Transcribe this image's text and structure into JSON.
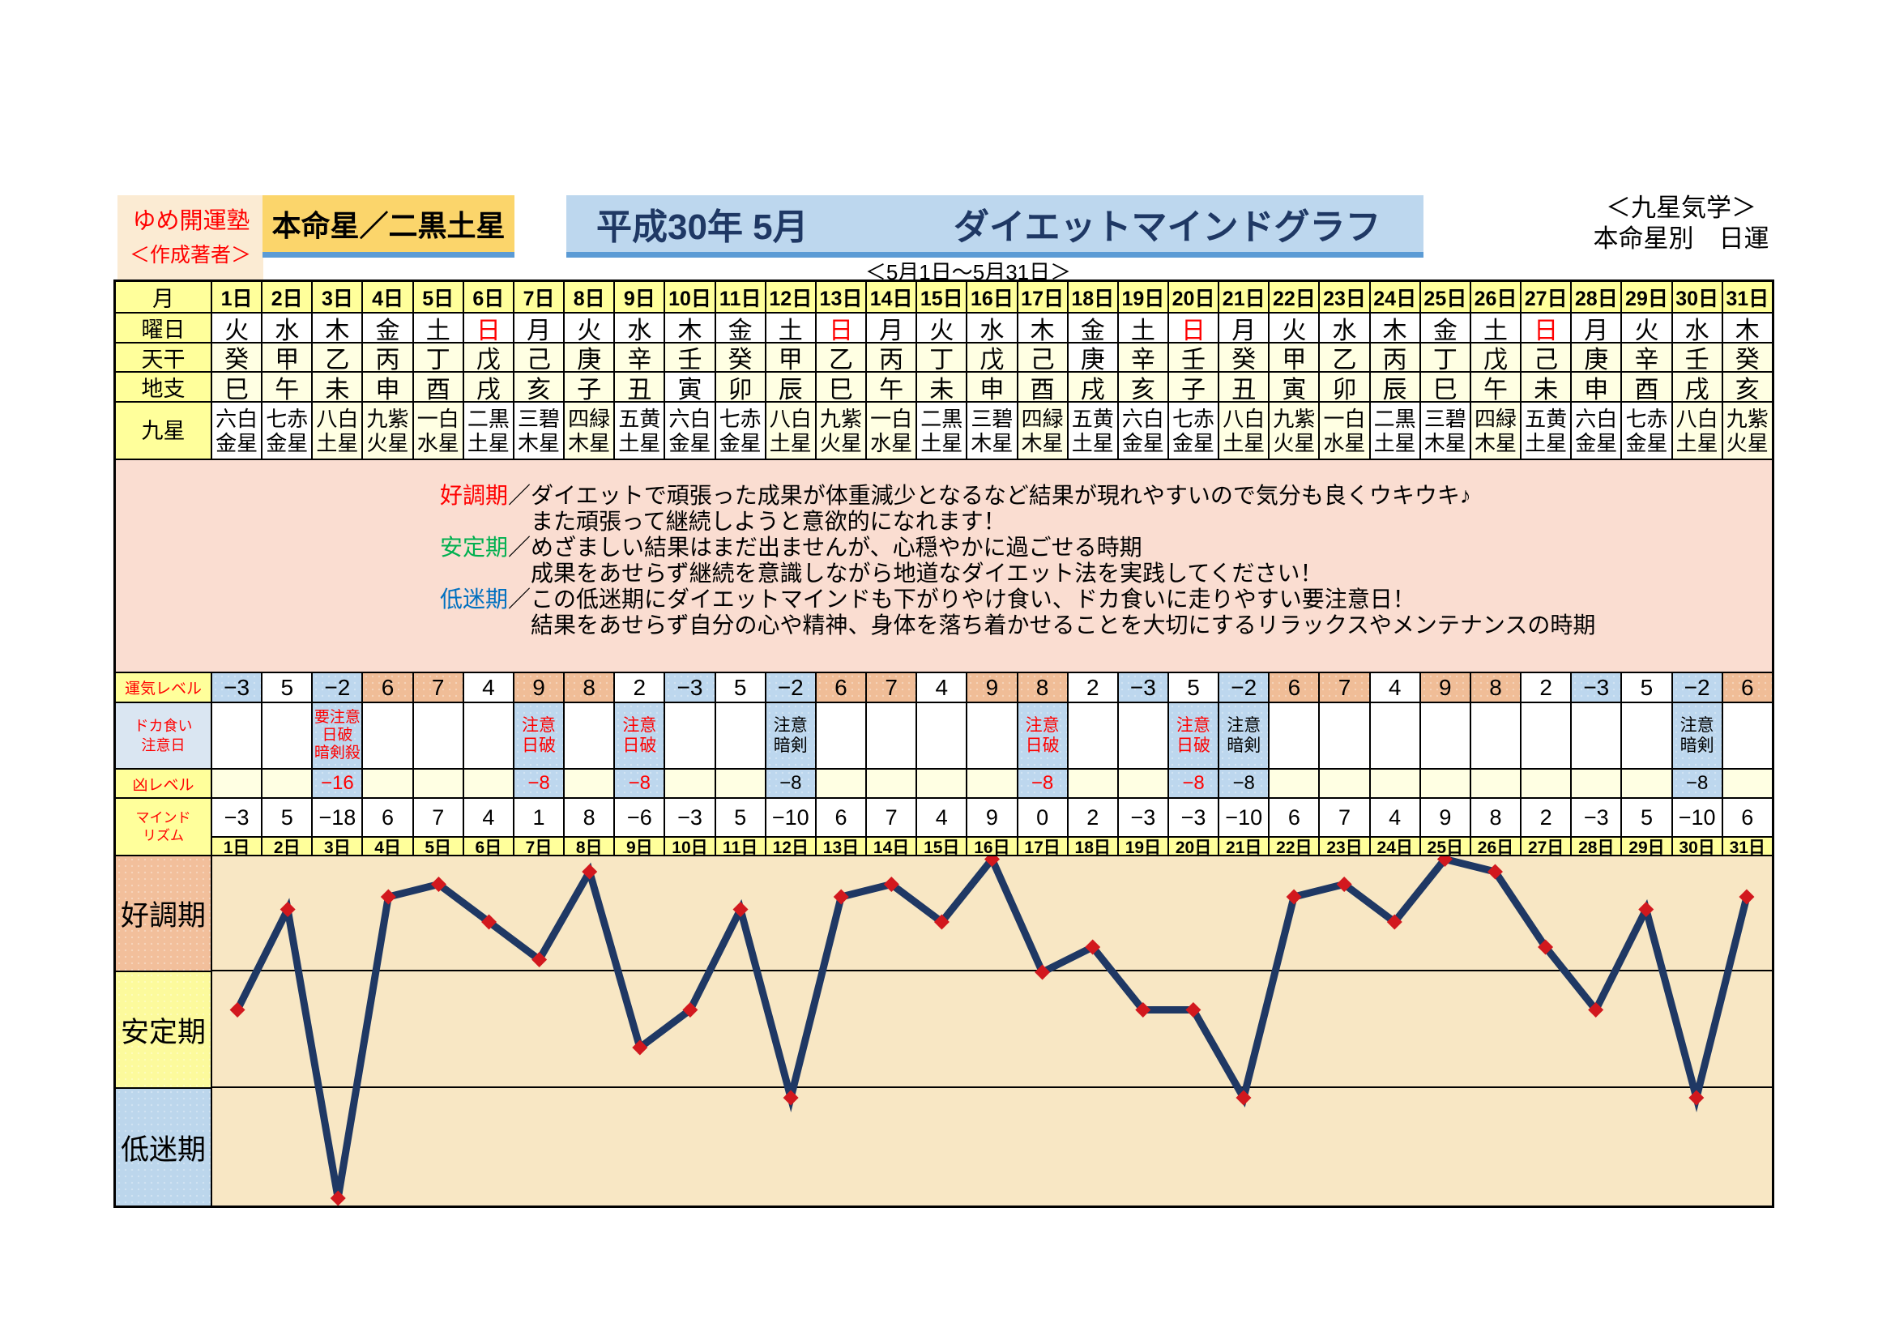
{
  "palette": {
    "brand_bg": "#FBEBD3",
    "gold_bg": "#FBD56B",
    "title_bg": "#BDD7EE",
    "bar": "#5B9BD5",
    "navy": "#1F3864",
    "red": "#FF0000",
    "green": "#00B050",
    "blue": "#0070C0",
    "yellow_cell": "#FFFF9B",
    "ivory_cell": "#FFFFE3",
    "salmon_cell": "#F0BD97",
    "blue_cell": "#BDD7EE",
    "legend_bg": "#FADDD1",
    "chart_bg": "#F8E7C4",
    "line": "#1F3864",
    "marker": "#D2181E"
  },
  "header": {
    "brand": "ゆめ開運塾",
    "author": "＜作成著者＞",
    "honmei": "本命星／二黒土星",
    "title_era": "平成30年 5月",
    "title_main": "ダイエットマインドグラフ",
    "caption_line1": "＜九星気学＞",
    "caption_line2": "本命星別　日運",
    "subtitle": "＜5月1日～5月31日＞"
  },
  "calendar": {
    "label_month": "月",
    "label_week": "曜日",
    "label_tenkan": "天干",
    "label_chishi": "地支",
    "label_kyusei": "九星",
    "days": [
      "1日",
      "2日",
      "3日",
      "4日",
      "5日",
      "6日",
      "7日",
      "8日",
      "9日",
      "10日",
      "11日",
      "12日",
      "13日",
      "14日",
      "15日",
      "16日",
      "17日",
      "18日",
      "19日",
      "20日",
      "21日",
      "22日",
      "23日",
      "24日",
      "25日",
      "26日",
      "27日",
      "28日",
      "29日",
      "30日",
      "31日"
    ],
    "weekdays": [
      "火",
      "水",
      "木",
      "金",
      "土",
      "日",
      "月",
      "火",
      "水",
      "木",
      "金",
      "土",
      "日",
      "月",
      "火",
      "水",
      "木",
      "金",
      "土",
      "日",
      "月",
      "火",
      "水",
      "木",
      "金",
      "土",
      "日",
      "月",
      "火",
      "水",
      "木"
    ],
    "sunday_color_days": [
      6,
      13,
      20,
      27
    ],
    "tenkan": [
      "癸",
      "甲",
      "乙",
      "丙",
      "丁",
      "戊",
      "己",
      "庚",
      "辛",
      "壬",
      "癸",
      "甲",
      "乙",
      "丙",
      "丁",
      "戊",
      "己",
      "庚",
      "辛",
      "壬",
      "癸",
      "甲",
      "乙",
      "丙",
      "丁",
      "戊",
      "己",
      "庚",
      "辛",
      "壬",
      "癸"
    ],
    "tenkan_white_days": [
      18
    ],
    "chishi": [
      "巳",
      "午",
      "未",
      "申",
      "酉",
      "戌",
      "亥",
      "子",
      "丑",
      "寅",
      "卯",
      "辰",
      "巳",
      "午",
      "未",
      "申",
      "酉",
      "戌",
      "亥",
      "子",
      "丑",
      "寅",
      "卯",
      "辰",
      "巳",
      "午",
      "未",
      "申",
      "酉",
      "戌",
      "亥"
    ],
    "chishi_white_days": [
      10
    ],
    "kyusei": [
      "六白金星",
      "七赤金星",
      "八白土星",
      "九紫火星",
      "一白水星",
      "二黒土星",
      "三碧木星",
      "四緑木星",
      "五黄土星",
      "六白金星",
      "七赤金星",
      "八白土星",
      "九紫火星",
      "一白水星",
      "二黒土星",
      "三碧木星",
      "四緑木星",
      "五黄土星",
      "六白金星",
      "七赤金星",
      "八白土星",
      "九紫火星",
      "一白水星",
      "二黒土星",
      "三碧木星",
      "四緑木星",
      "五黄土星",
      "六白金星",
      "七赤金星",
      "八白土星",
      "九紫火星"
    ],
    "kyusei_ivory_days": [
      3,
      4,
      5,
      8,
      12,
      13,
      14,
      17,
      21,
      22,
      23,
      26,
      30,
      31
    ]
  },
  "legend": {
    "separator": "／",
    "items": [
      {
        "term": "好調期",
        "color": "#FF0000",
        "line1": "ダイエットで頑張った成果が体重減少となるなど結果が現れやすいので気分も良くウキウキ♪",
        "line2": "また頑張って継続しようと意欲的になれます！"
      },
      {
        "term": "安定期",
        "color": "#00B050",
        "line1": "めざましい結果はまだ出ませんが、心穏やかに過ごせる時期",
        "line2": "成果をあせらず継続を意識しながら地道なダイエット法を実践してください！"
      },
      {
        "term": "低迷期",
        "color": "#0070C0",
        "line1": "この低迷期にダイエットマインドも下がりやけ食い、ドカ食いに走りやすい要注意日！",
        "line2": "結果をあせらず自分の心や精神、身体を落ち着かせることを大切にするリラックスやメンテナンスの時期"
      }
    ]
  },
  "levels": {
    "label_unki": "運気レベル",
    "label_doka": "ドカ食い\n注意日",
    "label_kyo": "凶レベル",
    "label_mind": "マインド\nリズム",
    "unki": [
      -3,
      5,
      -2,
      6,
      7,
      4,
      9,
      8,
      2,
      -3,
      5,
      -2,
      6,
      7,
      4,
      9,
      8,
      2,
      -3,
      5,
      -2,
      6,
      7,
      4,
      9,
      8,
      2,
      -3,
      5,
      -2,
      6
    ],
    "caution": [
      {
        "day": 3,
        "lines": [
          "要注意",
          "日破",
          "暗剣殺"
        ],
        "color": "red"
      },
      {
        "day": 7,
        "lines": [
          "注意",
          "日破"
        ],
        "color": "red"
      },
      {
        "day": 9,
        "lines": [
          "注意",
          "日破"
        ],
        "color": "red"
      },
      {
        "day": 12,
        "lines": [
          "注意",
          "暗剣"
        ],
        "color": "black"
      },
      {
        "day": 17,
        "lines": [
          "注意",
          "日破"
        ],
        "color": "red"
      },
      {
        "day": 20,
        "lines": [
          "注意",
          "日破"
        ],
        "color": "red"
      },
      {
        "day": 21,
        "lines": [
          "注意",
          "暗剣"
        ],
        "color": "black"
      },
      {
        "day": 30,
        "lines": [
          "注意",
          "暗剣"
        ],
        "color": "black"
      }
    ],
    "kyo": [
      {
        "day": 3,
        "value": -16,
        "color": "red"
      },
      {
        "day": 7,
        "value": -8,
        "color": "red"
      },
      {
        "day": 9,
        "value": -8,
        "color": "red"
      },
      {
        "day": 12,
        "value": -8,
        "color": "black"
      },
      {
        "day": 17,
        "value": -8,
        "color": "red"
      },
      {
        "day": 20,
        "value": -8,
        "color": "red"
      },
      {
        "day": 21,
        "value": -8,
        "color": "black"
      },
      {
        "day": 30,
        "value": -8,
        "color": "black"
      }
    ]
  },
  "chart_data": {
    "type": "line",
    "title": "マインドリズム",
    "x": [
      1,
      2,
      3,
      4,
      5,
      6,
      7,
      8,
      9,
      10,
      11,
      12,
      13,
      14,
      15,
      16,
      17,
      18,
      19,
      20,
      21,
      22,
      23,
      24,
      25,
      26,
      27,
      28,
      29,
      30,
      31
    ],
    "x_labels": [
      "1日",
      "2日",
      "3日",
      "4日",
      "5日",
      "6日",
      "7日",
      "8日",
      "9日",
      "10日",
      "11日",
      "12日",
      "13日",
      "14日",
      "15日",
      "16日",
      "17日",
      "18日",
      "19日",
      "20日",
      "21日",
      "22日",
      "23日",
      "24日",
      "25日",
      "26日",
      "27日",
      "28日",
      "29日",
      "30日",
      "31日"
    ],
    "values": [
      -3,
      5,
      -18,
      6,
      7,
      4,
      1,
      8,
      -6,
      -3,
      5,
      -10,
      6,
      7,
      4,
      9,
      0,
      2,
      -3,
      -3,
      -10,
      6,
      7,
      4,
      9,
      8,
      2,
      -3,
      5,
      -10,
      6
    ],
    "ylim": [
      -19.4,
      9.35
    ],
    "zone_boundaries": [
      0,
      -9.3
    ],
    "zones": [
      "好調期",
      "安定期",
      "低迷期"
    ],
    "grid": "zone lines only",
    "legend_position": "none",
    "line_color": "#1F3864",
    "marker": "diamond",
    "marker_color": "#D2181E"
  }
}
